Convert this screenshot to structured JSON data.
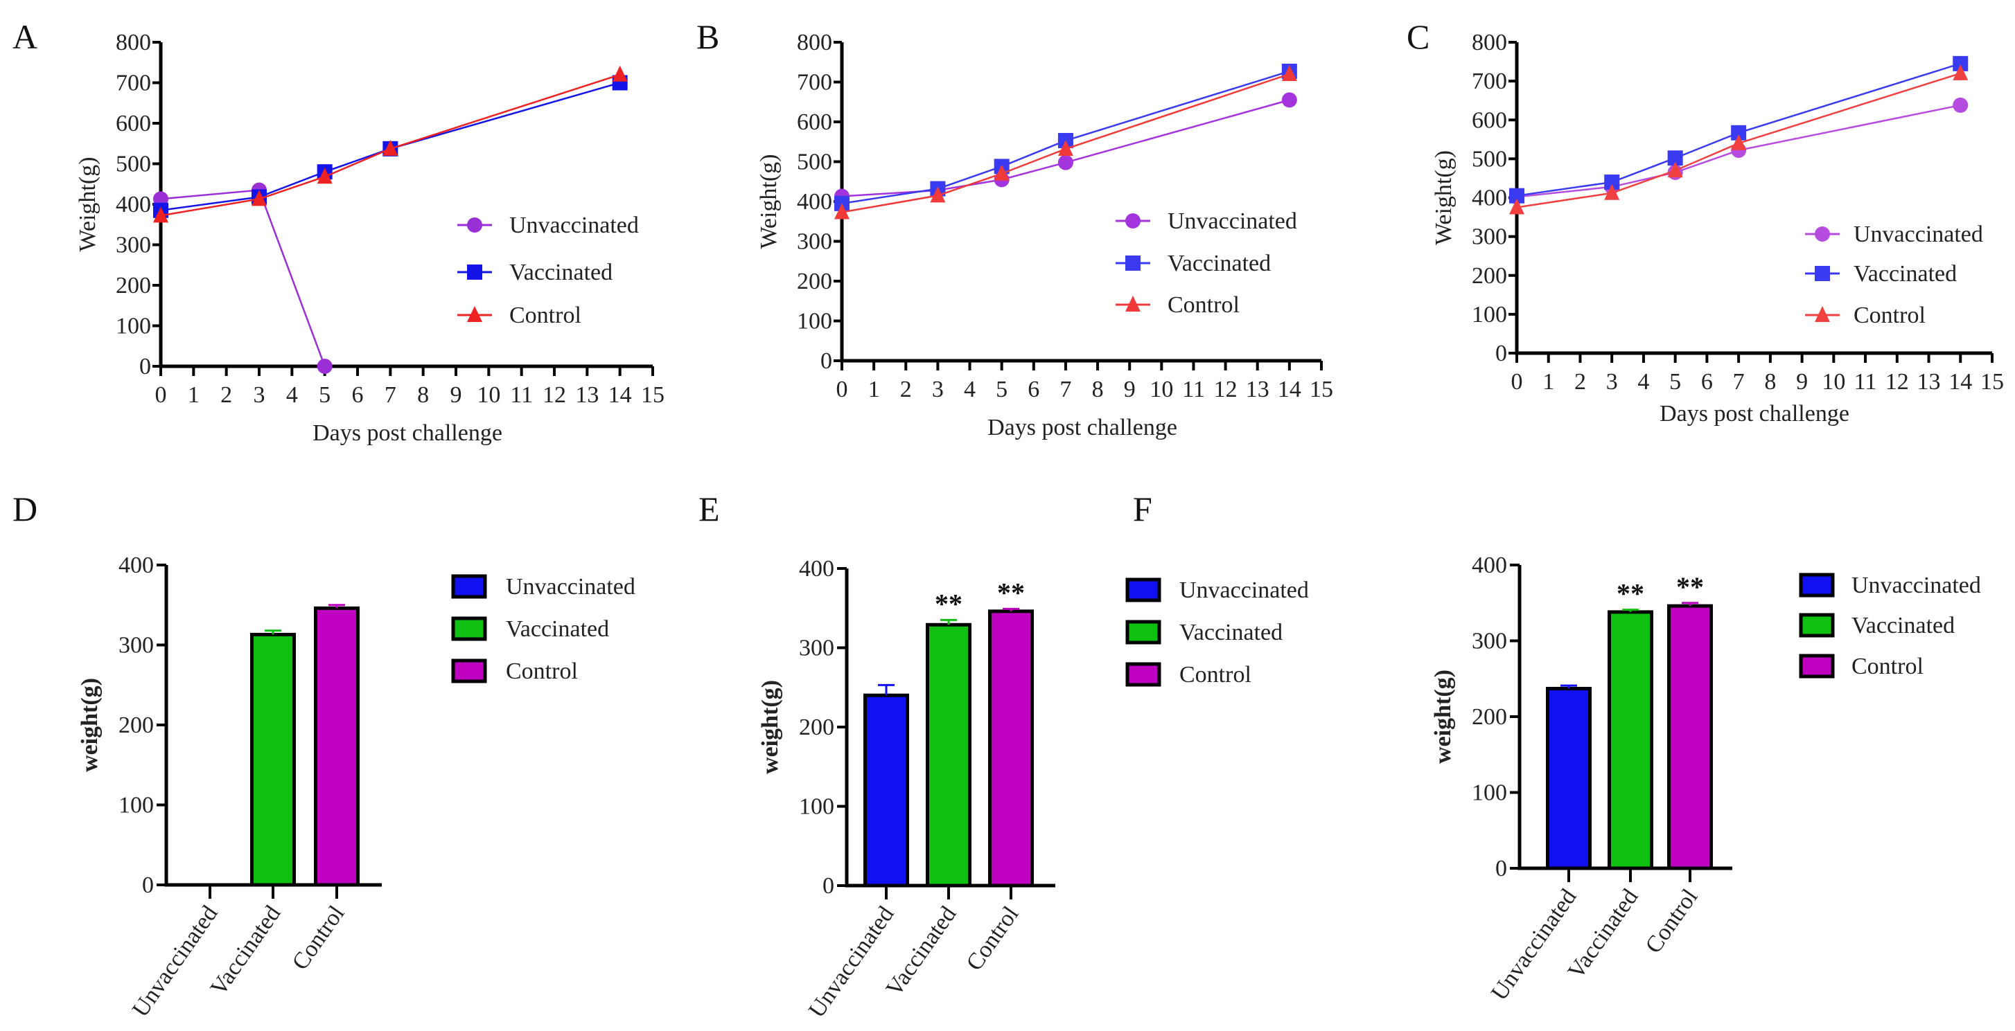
{
  "chart_data": [
    {
      "panel": "A",
      "type": "line",
      "xlabel": "Days post challenge",
      "ylabel": "Weight(g)",
      "xlim": [
        0,
        15
      ],
      "ylim": [
        0,
        800
      ],
      "xticks": [
        0,
        1,
        2,
        3,
        4,
        5,
        6,
        7,
        8,
        9,
        10,
        11,
        12,
        13,
        14,
        15
      ],
      "yticks": [
        0,
        100,
        200,
        300,
        400,
        500,
        600,
        700,
        800
      ],
      "legend": "right",
      "series": [
        {
          "name": "Unvaccinated",
          "marker": "circle",
          "color": "#9a2fd6",
          "x": [
            0,
            3,
            5
          ],
          "y": [
            413,
            435,
            0
          ]
        },
        {
          "name": "Vaccinated",
          "marker": "square",
          "color": "#1414e8",
          "x": [
            0,
            3,
            5,
            7,
            14
          ],
          "y": [
            385,
            418,
            480,
            537,
            700
          ]
        },
        {
          "name": "Control",
          "marker": "triangle",
          "color": "#ee2222",
          "x": [
            0,
            3,
            5,
            7,
            14
          ],
          "y": [
            372,
            413,
            468,
            537,
            720
          ]
        }
      ]
    },
    {
      "panel": "B",
      "type": "line",
      "xlabel": "Days post challenge",
      "ylabel": "Weight(g)",
      "xlim": [
        0,
        15
      ],
      "ylim": [
        0,
        800
      ],
      "xticks": [
        0,
        1,
        2,
        3,
        4,
        5,
        6,
        7,
        8,
        9,
        10,
        11,
        12,
        13,
        14,
        15
      ],
      "yticks": [
        0,
        100,
        200,
        300,
        400,
        500,
        600,
        700,
        800
      ],
      "legend": "right",
      "series": [
        {
          "name": "Unvaccinated",
          "marker": "circle",
          "color": "#a333dd",
          "x": [
            0,
            3,
            5,
            7,
            14
          ],
          "y": [
            413,
            428,
            455,
            498,
            655
          ]
        },
        {
          "name": "Vaccinated",
          "marker": "square",
          "color": "#3a3af0",
          "x": [
            0,
            3,
            5,
            7,
            14
          ],
          "y": [
            395,
            432,
            488,
            553,
            727
          ]
        },
        {
          "name": "Control",
          "marker": "triangle",
          "color": "#f03a3a",
          "x": [
            0,
            3,
            5,
            7,
            14
          ],
          "y": [
            373,
            415,
            470,
            532,
            720
          ]
        }
      ]
    },
    {
      "panel": "C",
      "type": "line",
      "xlabel": "Days post challenge",
      "ylabel": "Weight(g)",
      "xlim": [
        0,
        15
      ],
      "ylim": [
        0,
        800
      ],
      "xticks": [
        0,
        1,
        2,
        3,
        4,
        5,
        6,
        7,
        8,
        9,
        10,
        11,
        12,
        13,
        14,
        15
      ],
      "yticks": [
        0,
        100,
        200,
        300,
        400,
        500,
        600,
        700,
        800
      ],
      "legend": "right",
      "series": [
        {
          "name": "Unvaccinated",
          "marker": "circle",
          "color": "#b64be0",
          "x": [
            0,
            3,
            5,
            7,
            14
          ],
          "y": [
            402,
            428,
            465,
            522,
            638
          ]
        },
        {
          "name": "Vaccinated",
          "marker": "square",
          "color": "#3a3af0",
          "x": [
            0,
            3,
            5,
            7,
            14
          ],
          "y": [
            405,
            440,
            502,
            567,
            745
          ]
        },
        {
          "name": "Control",
          "marker": "triangle",
          "color": "#f04040",
          "x": [
            0,
            3,
            5,
            7,
            14
          ],
          "y": [
            375,
            412,
            470,
            540,
            720
          ]
        }
      ]
    },
    {
      "panel": "D",
      "type": "bar",
      "ylabel": "weight(g)",
      "ylim": [
        0,
        400
      ],
      "yticks": [
        0,
        100,
        200,
        300,
        400
      ],
      "categories": [
        "Unvaccinated",
        "Vaccinated",
        "Control"
      ],
      "values": [
        0,
        313,
        346
      ],
      "errors": [
        0,
        5,
        4
      ],
      "colors": [
        "#1010f0",
        "#10c010",
        "#c000c0"
      ],
      "annotations": [
        "",
        "",
        ""
      ],
      "legend": "right"
    },
    {
      "panel": "E",
      "type": "bar",
      "ylabel": "weight(g)",
      "ylim": [
        0,
        400
      ],
      "yticks": [
        0,
        100,
        200,
        300,
        400
      ],
      "categories": [
        "Unvaccinated",
        "Vaccinated",
        "Control"
      ],
      "values": [
        240,
        329,
        346
      ],
      "errors": [
        13,
        6,
        3
      ],
      "colors": [
        "#1010f0",
        "#10c010",
        "#c000c0"
      ],
      "annotations": [
        "",
        "**",
        "**"
      ],
      "legend": "right"
    },
    {
      "panel": "F",
      "type": "bar",
      "ylabel": "weight(g)",
      "ylim": [
        0,
        400
      ],
      "yticks": [
        0,
        100,
        200,
        300,
        400
      ],
      "categories": [
        "Unvaccinated",
        "Vaccinated",
        "Control"
      ],
      "values": [
        237,
        338,
        346
      ],
      "errors": [
        4,
        3,
        4
      ],
      "colors": [
        "#1010f0",
        "#10c010",
        "#c000c0"
      ],
      "annotations": [
        "",
        "**",
        "**"
      ],
      "legend": "right"
    }
  ]
}
